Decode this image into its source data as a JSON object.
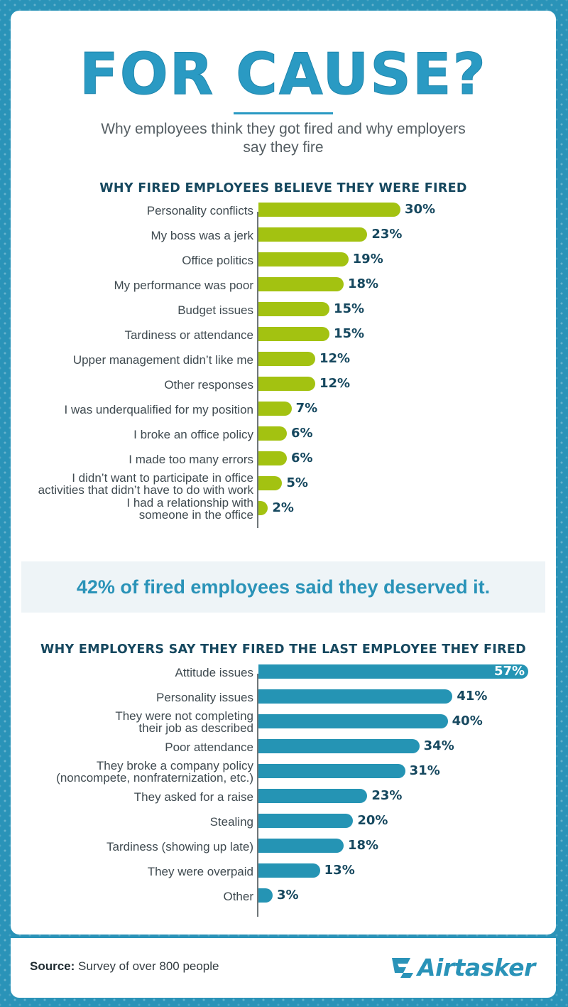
{
  "header": {
    "title": "FOR CAUSE?",
    "subtitle": "Why employees think they got fired and why employers say they fire"
  },
  "colors": {
    "background": "#2a93b8",
    "employees_bar": "#a3c211",
    "employers_bar": "#2594b4",
    "heading_text": "#16485f"
  },
  "callout": {
    "text": "42% of fired employees said they deserved it."
  },
  "footer": {
    "source_label": "Source:",
    "source_text": "Survey of over 800 people",
    "logo_text": "Airtasker",
    "logo_icon": "airtasker-logo-icon"
  },
  "chart_data": [
    {
      "type": "bar",
      "orientation": "horizontal",
      "title": "WHY FIRED EMPLOYEES BELIEVE THEY WERE FIRED",
      "unit": "%",
      "categories": [
        [
          "Personality conflicts"
        ],
        [
          "My boss was a jerk"
        ],
        [
          "Office politics"
        ],
        [
          "My performance was poor"
        ],
        [
          "Budget issues"
        ],
        [
          "Tardiness or attendance"
        ],
        [
          "Upper management didn’t like me"
        ],
        [
          "Other responses"
        ],
        [
          "I was underqualified for my position"
        ],
        [
          "I broke an office policy"
        ],
        [
          "I made too many errors"
        ],
        [
          "I didn’t want to participate in office",
          "activities that didn’t have to do with work"
        ],
        [
          "I had a relationship with",
          "someone in the office"
        ]
      ],
      "values": [
        30,
        23,
        19,
        18,
        15,
        15,
        12,
        12,
        7,
        6,
        6,
        5,
        2
      ],
      "value_labels": [
        "30%",
        "23%",
        "19%",
        "18%",
        "15%",
        "15%",
        "12%",
        "12%",
        "7%",
        "6%",
        "6%",
        "5%",
        "2%"
      ],
      "xlim": [
        0,
        60
      ]
    },
    {
      "type": "bar",
      "orientation": "horizontal",
      "title": "WHY EMPLOYERS SAY THEY FIRED THE LAST EMPLOYEE THEY FIRED",
      "unit": "%",
      "categories": [
        [
          "Attitude issues"
        ],
        [
          "Personality issues"
        ],
        [
          "They were not completing",
          "their job as described"
        ],
        [
          "Poor attendance"
        ],
        [
          "They broke a company policy",
          "(noncompete, nonfraternization, etc.)"
        ],
        [
          "They asked for a raise"
        ],
        [
          "Stealing"
        ],
        [
          "Tardiness (showing up late)"
        ],
        [
          "They were overpaid"
        ],
        [
          "Other"
        ]
      ],
      "values": [
        57,
        41,
        40,
        34,
        31,
        23,
        20,
        18,
        13,
        3
      ],
      "value_labels": [
        "57%",
        "41%",
        "40%",
        "34%",
        "31%",
        "23%",
        "20%",
        "18%",
        "13%",
        "3%"
      ],
      "xlim": [
        0,
        60
      ]
    }
  ]
}
